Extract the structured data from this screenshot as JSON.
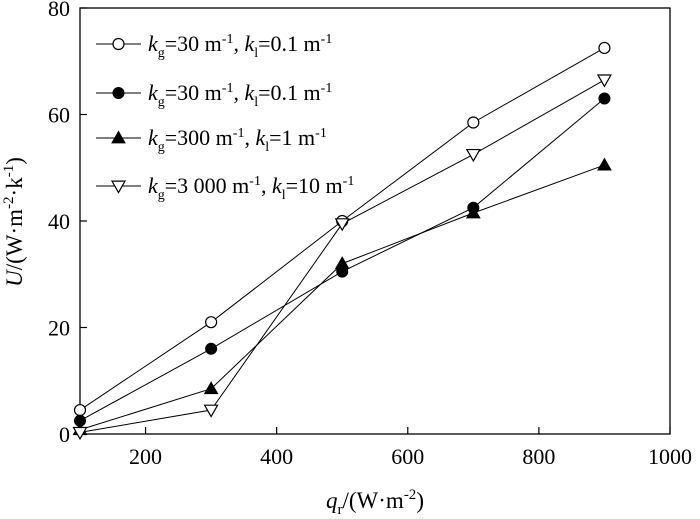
{
  "chart_data": {
    "type": "line",
    "title": "",
    "xlabel": {
      "main": "q",
      "sub": "r",
      "unit": "/(W·m",
      "sup": "-2",
      "close": ")"
    },
    "ylabel": {
      "main": "U",
      "unit": "/(W·m",
      "sup1": "-2",
      "mid": "·k",
      "sup2": "-1",
      "close": ")"
    },
    "xlim": [
      100,
      1000
    ],
    "ylim": [
      0,
      80
    ],
    "x_ticks": [
      200,
      400,
      600,
      800,
      1000
    ],
    "y_ticks": [
      0,
      20,
      40,
      60,
      80
    ],
    "grid": false,
    "legend_position": "top-left",
    "series": [
      {
        "name": "kg=30 m-1, kl=0.1 m-1",
        "legend": {
          "g_val": "=30 m",
          "g_sup": "-1",
          "sep": ", ",
          "l_val": "=0.1 m",
          "l_sup": "-1"
        },
        "marker": "open-circle",
        "x": [
          100,
          300,
          500,
          700,
          900
        ],
        "y": [
          4.5,
          21,
          40,
          58.5,
          72.5
        ]
      },
      {
        "name": "kg=30 m-1, kl=0.1 m-1",
        "legend": {
          "g_val": "=30 m",
          "g_sup": "-1",
          "sep": ", ",
          "l_val": "=0.1 m",
          "l_sup": "-1"
        },
        "marker": "filled-circle",
        "x": [
          100,
          300,
          500,
          700,
          900
        ],
        "y": [
          2.5,
          16,
          30.5,
          42.5,
          63
        ]
      },
      {
        "name": "kg=300 m-1, kl=1 m-1",
        "legend": {
          "g_val": "=300 m",
          "g_sup": "-1",
          "sep": ", ",
          "l_val": "=1 m",
          "l_sup": "-1"
        },
        "marker": "filled-triangle",
        "x": [
          100,
          300,
          500,
          700,
          900
        ],
        "y": [
          0.8,
          8.5,
          32,
          41.5,
          50.5
        ]
      },
      {
        "name": "kg=3 000 m-1, kl=10 m-1",
        "legend": {
          "g_val": "=3 000 m",
          "g_sup": "-1",
          "sep": ", ",
          "l_val": "=10 m",
          "l_sup": "-1"
        },
        "marker": "open-down-triangle",
        "x": [
          100,
          300,
          500,
          700,
          900
        ],
        "y": [
          0.3,
          4.5,
          39.5,
          52.5,
          66.5
        ]
      }
    ]
  }
}
